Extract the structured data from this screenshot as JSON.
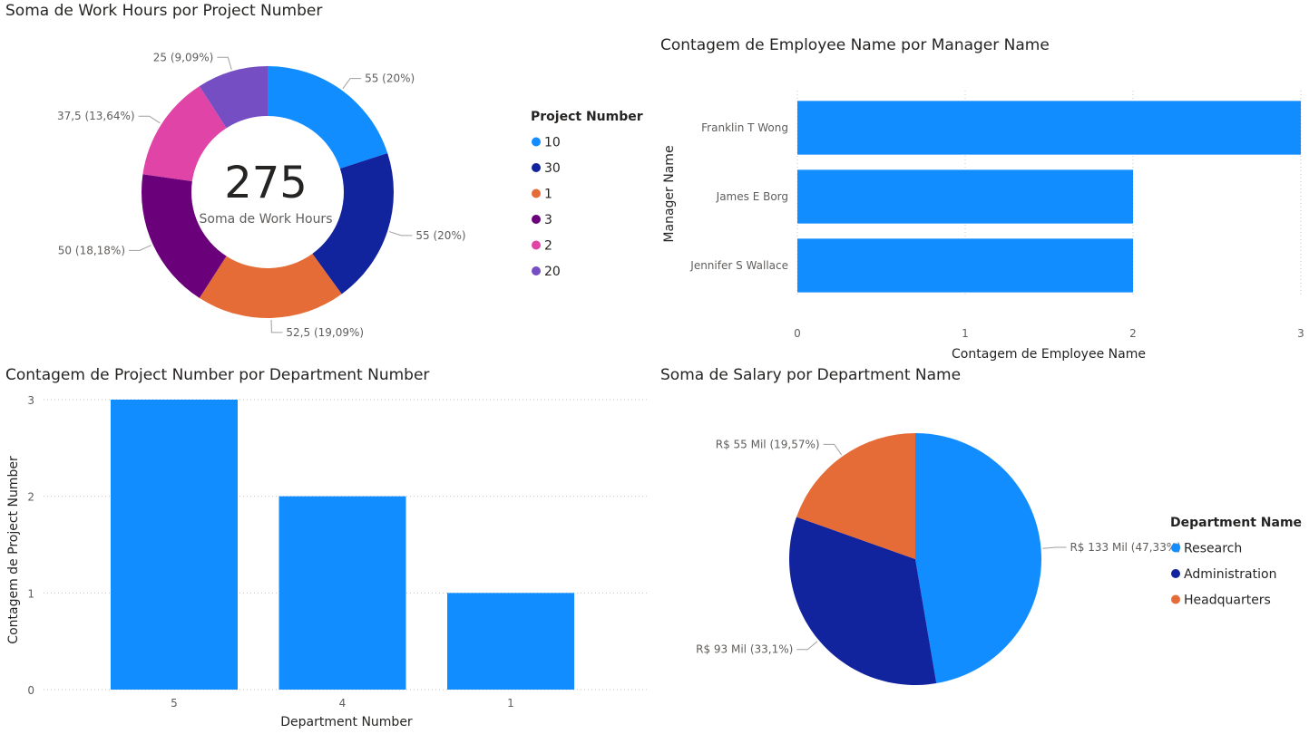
{
  "chart_data": [
    {
      "id": "donut",
      "type": "pie",
      "title": "Soma de Work Hours por Project Number",
      "center_value": "275",
      "center_label": "Soma de Work Hours",
      "legend_title": "Project Number",
      "legend_position": "right",
      "slices": [
        {
          "label": "10",
          "value": 55,
          "data_label": "55 (20%)",
          "color": "#118DFF"
        },
        {
          "label": "30",
          "value": 55,
          "data_label": "55 (20%)",
          "color": "#12239E"
        },
        {
          "label": "1",
          "value": 52.5,
          "data_label": "52,5 (19,09%)",
          "color": "#E66C37"
        },
        {
          "label": "3",
          "value": 50,
          "data_label": "50 (18,18%)",
          "color": "#6B007B"
        },
        {
          "label": "2",
          "value": 37.5,
          "data_label": "37,5 (13,64%)",
          "color": "#E044A7"
        },
        {
          "label": "20",
          "value": 25,
          "data_label": "25 (9,09%)",
          "color": "#744EC2"
        }
      ]
    },
    {
      "id": "hbar",
      "type": "bar",
      "orientation": "horizontal",
      "title": "Contagem de Employee Name por Manager Name",
      "categories": [
        "Franklin T Wong",
        "James E Borg",
        "Jennifer S Wallace"
      ],
      "values": [
        3,
        2,
        2
      ],
      "xlabel": "Contagem de Employee Name",
      "ylabel": "Manager Name",
      "xlim": [
        0,
        3
      ],
      "xticks": [
        "0",
        "1",
        "2",
        "3"
      ],
      "grid": true,
      "color": "#118DFF"
    },
    {
      "id": "vbar",
      "type": "bar",
      "orientation": "vertical",
      "title": "Contagem de Project Number por Department Number",
      "categories": [
        "5",
        "4",
        "1"
      ],
      "values": [
        3,
        2,
        1
      ],
      "xlabel": "Department Number",
      "ylabel": "Contagem de Project Number",
      "ylim": [
        0,
        3
      ],
      "yticks": [
        "0",
        "1",
        "2",
        "3"
      ],
      "grid": true,
      "color": "#118DFF"
    },
    {
      "id": "pie",
      "type": "pie",
      "title": "Soma de Salary por Department Name",
      "legend_title": "Department Name",
      "legend_position": "right",
      "slices": [
        {
          "label": "Research",
          "value": 133,
          "data_label": "R$ 133 Mil (47,33%)",
          "color": "#118DFF"
        },
        {
          "label": "Administration",
          "value": 93,
          "data_label": "R$ 93 Mil (33,1%)",
          "color": "#12239E"
        },
        {
          "label": "Headquarters",
          "value": 55,
          "data_label": "R$ 55 Mil (19,57%)",
          "color": "#E66C37"
        }
      ]
    }
  ]
}
